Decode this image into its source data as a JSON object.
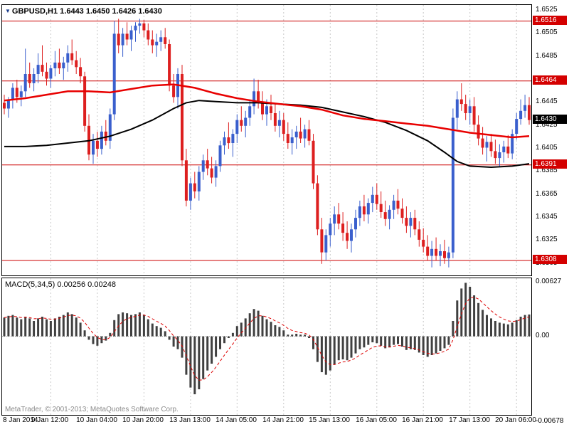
{
  "header": {
    "title_text": "GBPUSD,H1 1.6443 1.6450 1.6426 1.6430",
    "symbol": "GBPUSD",
    "timeframe": "H1",
    "marker_glyph": "▼"
  },
  "macd_panel": {
    "label_text": "MACD(5,34,5) 0.00256 0.00248"
  },
  "footer": {
    "copyright": "MetaTrader, © 2001-2013; MetaQuotes Software Corp."
  },
  "colors": {
    "bull": "#3a5fcd",
    "bear": "#dd1f1f",
    "level_line": "#cc0000",
    "badge_red": "#d40000",
    "badge_black": "#000000",
    "grid": "#c8c8c8",
    "histogram": "#404040",
    "signal": "#dd0000",
    "zero_line": "#999999",
    "background": "#ffffff",
    "border": "#000000"
  },
  "chart_data": [
    {
      "type": "candlestick",
      "title": "GBPUSD,H1",
      "open": 1.6443,
      "high": 1.645,
      "low": 1.6426,
      "close": 1.643,
      "ylim": [
        1.6295,
        1.653
      ],
      "grid": "vertical-dashed",
      "y_ticks": [
        "1.6525",
        "1.6505",
        "1.6485",
        "1.6445",
        "1.6425",
        "1.6405",
        "1.6385",
        "1.6365",
        "1.6345",
        "1.6325",
        "1.6305"
      ],
      "level_lines": [
        1.6516,
        1.6464,
        1.6391,
        1.6308
      ],
      "badges": [
        {
          "text": "1.6516",
          "value": 1.6516,
          "style": "red"
        },
        {
          "text": "1.6464",
          "value": 1.6464,
          "style": "red"
        },
        {
          "text": "1.6430",
          "value": 1.643,
          "style": "black"
        },
        {
          "text": "1.6391",
          "value": 1.6391,
          "style": "red"
        },
        {
          "text": "1.6308",
          "value": 1.6308,
          "style": "red"
        }
      ],
      "x_labels": [
        [
          "8 Jan 2014",
          0
        ],
        [
          "9 Jan 12:00",
          11
        ],
        [
          "10 Jan 04:00",
          22
        ],
        [
          "10 Jan 20:00",
          33
        ],
        [
          "13 Jan 13:00",
          44
        ],
        [
          "14 Jan 05:00",
          55
        ],
        [
          "14 Jan 21:00",
          66
        ],
        [
          "15 Jan 13:00",
          77
        ],
        [
          "16 Jan 05:00",
          88
        ],
        [
          "16 Jan 21:00",
          99
        ],
        [
          "17 Jan 13:00",
          110
        ],
        [
          "20 Jan 06:00",
          121
        ]
      ],
      "candles": [
        [
          1.6445,
          1.6452,
          1.6435,
          1.644
        ],
        [
          1.644,
          1.645,
          1.6432,
          1.6448
        ],
        [
          1.6448,
          1.6462,
          1.644,
          1.6458
        ],
        [
          1.6458,
          1.6465,
          1.6445,
          1.645
        ],
        [
          1.645,
          1.646,
          1.6442,
          1.6455
        ],
        [
          1.6455,
          1.6492,
          1.645,
          1.647
        ],
        [
          1.647,
          1.648,
          1.6458,
          1.6462
        ],
        [
          1.6462,
          1.6475,
          1.6455,
          1.647
        ],
        [
          1.647,
          1.6488,
          1.6462,
          1.6478
        ],
        [
          1.6478,
          1.6495,
          1.6468,
          1.6472
        ],
        [
          1.6472,
          1.648,
          1.646,
          1.6466
        ],
        [
          1.6466,
          1.6478,
          1.6458,
          1.6475
        ],
        [
          1.6475,
          1.649,
          1.6468,
          1.648
        ],
        [
          1.648,
          1.6492,
          1.647,
          1.6475
        ],
        [
          1.6475,
          1.6485,
          1.6465,
          1.648
        ],
        [
          1.648,
          1.6495,
          1.6472,
          1.6488
        ],
        [
          1.6488,
          1.65,
          1.6478,
          1.6482
        ],
        [
          1.6482,
          1.649,
          1.647,
          1.6476
        ],
        [
          1.6476,
          1.6484,
          1.6462,
          1.6468
        ],
        [
          1.6468,
          1.6472,
          1.642,
          1.6425
        ],
        [
          1.6425,
          1.6435,
          1.6395,
          1.64
        ],
        [
          1.64,
          1.6418,
          1.6392,
          1.6412
        ],
        [
          1.6412,
          1.642,
          1.6398,
          1.6405
        ],
        [
          1.6405,
          1.6425,
          1.64,
          1.642
        ],
        [
          1.642,
          1.643,
          1.6408,
          1.6412
        ],
        [
          1.6412,
          1.644,
          1.6405,
          1.6435
        ],
        [
          1.6435,
          1.6516,
          1.643,
          1.6505
        ],
        [
          1.6505,
          1.6518,
          1.6488,
          1.6495
        ],
        [
          1.6495,
          1.651,
          1.6485,
          1.6505
        ],
        [
          1.6505,
          1.6515,
          1.6495,
          1.65
        ],
        [
          1.65,
          1.6512,
          1.649,
          1.6508
        ],
        [
          1.6508,
          1.6515,
          1.6498,
          1.6512
        ],
        [
          1.6512,
          1.6518,
          1.6505,
          1.6514
        ],
        [
          1.6514,
          1.6517,
          1.6502,
          1.6508
        ],
        [
          1.6508,
          1.6514,
          1.6495,
          1.65
        ],
        [
          1.65,
          1.6508,
          1.6488,
          1.6495
        ],
        [
          1.6495,
          1.6505,
          1.6485,
          1.6498
        ],
        [
          1.6498,
          1.6508,
          1.649,
          1.6502
        ],
        [
          1.6502,
          1.651,
          1.6492,
          1.6496
        ],
        [
          1.6496,
          1.65,
          1.6455,
          1.646
        ],
        [
          1.646,
          1.647,
          1.6445,
          1.645
        ],
        [
          1.645,
          1.6475,
          1.644,
          1.647
        ],
        [
          1.647,
          1.6478,
          1.639,
          1.6395
        ],
        [
          1.6395,
          1.6405,
          1.6355,
          1.636
        ],
        [
          1.636,
          1.638,
          1.6352,
          1.6375
        ],
        [
          1.6375,
          1.6385,
          1.6362,
          1.6368
        ],
        [
          1.6368,
          1.639,
          1.636,
          1.6385
        ],
        [
          1.6385,
          1.64,
          1.6378,
          1.6395
        ],
        [
          1.6395,
          1.6405,
          1.6382,
          1.6388
        ],
        [
          1.6388,
          1.6398,
          1.6375,
          1.638
        ],
        [
          1.638,
          1.6395,
          1.6372,
          1.639
        ],
        [
          1.639,
          1.6412,
          1.6385,
          1.6408
        ],
        [
          1.6408,
          1.642,
          1.64,
          1.6415
        ],
        [
          1.6415,
          1.6428,
          1.6405,
          1.641
        ],
        [
          1.641,
          1.6422,
          1.6398,
          1.6418
        ],
        [
          1.6418,
          1.6435,
          1.641,
          1.643
        ],
        [
          1.643,
          1.6442,
          1.642,
          1.6425
        ],
        [
          1.6425,
          1.6438,
          1.6415,
          1.6432
        ],
        [
          1.6432,
          1.6448,
          1.6425,
          1.6442
        ],
        [
          1.6442,
          1.6466,
          1.6435,
          1.6455
        ],
        [
          1.6455,
          1.6465,
          1.644,
          1.6445
        ],
        [
          1.6445,
          1.6455,
          1.643,
          1.6435
        ],
        [
          1.6435,
          1.6448,
          1.6425,
          1.6442
        ],
        [
          1.6442,
          1.6452,
          1.643,
          1.6436
        ],
        [
          1.6436,
          1.6444,
          1.642,
          1.6425
        ],
        [
          1.6425,
          1.6438,
          1.6415,
          1.643
        ],
        [
          1.643,
          1.6436,
          1.6412,
          1.6418
        ],
        [
          1.6418,
          1.6428,
          1.6405,
          1.641
        ],
        [
          1.641,
          1.6422,
          1.64,
          1.6415
        ],
        [
          1.6415,
          1.6425,
          1.6405,
          1.642
        ],
        [
          1.642,
          1.6432,
          1.641,
          1.6414
        ],
        [
          1.6414,
          1.6426,
          1.6406,
          1.6422
        ],
        [
          1.6422,
          1.643,
          1.6408,
          1.6412
        ],
        [
          1.6412,
          1.6418,
          1.637,
          1.6375
        ],
        [
          1.6375,
          1.6382,
          1.633,
          1.6335
        ],
        [
          1.6335,
          1.6345,
          1.6305,
          1.6315
        ],
        [
          1.6315,
          1.6335,
          1.6308,
          1.633
        ],
        [
          1.633,
          1.6345,
          1.632,
          1.634
        ],
        [
          1.634,
          1.6355,
          1.633,
          1.6348
        ],
        [
          1.6348,
          1.6358,
          1.6335,
          1.634
        ],
        [
          1.634,
          1.635,
          1.6325,
          1.6332
        ],
        [
          1.6332,
          1.6342,
          1.6318,
          1.6325
        ],
        [
          1.6325,
          1.634,
          1.6315,
          1.6335
        ],
        [
          1.6335,
          1.6352,
          1.6328,
          1.6345
        ],
        [
          1.6345,
          1.636,
          1.6338,
          1.6355
        ],
        [
          1.6355,
          1.6365,
          1.6342,
          1.6348
        ],
        [
          1.6348,
          1.6362,
          1.634,
          1.6358
        ],
        [
          1.6358,
          1.6372,
          1.635,
          1.6365
        ],
        [
          1.6365,
          1.6375,
          1.6352,
          1.6357
        ],
        [
          1.6357,
          1.6368,
          1.6345,
          1.635
        ],
        [
          1.635,
          1.636,
          1.6338,
          1.6344
        ],
        [
          1.6344,
          1.6356,
          1.6335,
          1.6352
        ],
        [
          1.6352,
          1.6365,
          1.6344,
          1.636
        ],
        [
          1.636,
          1.637,
          1.6348,
          1.6353
        ],
        [
          1.6353,
          1.6362,
          1.634,
          1.6345
        ],
        [
          1.6345,
          1.6355,
          1.6332,
          1.6338
        ],
        [
          1.6338,
          1.635,
          1.6328,
          1.6345
        ],
        [
          1.6345,
          1.6352,
          1.633,
          1.6335
        ],
        [
          1.6335,
          1.6342,
          1.632,
          1.6326
        ],
        [
          1.6326,
          1.6336,
          1.6315,
          1.632
        ],
        [
          1.632,
          1.633,
          1.6308,
          1.6312
        ],
        [
          1.6312,
          1.6325,
          1.6302,
          1.6318
        ],
        [
          1.6318,
          1.6328,
          1.6308,
          1.6312
        ],
        [
          1.6312,
          1.6322,
          1.6303,
          1.6316
        ],
        [
          1.6316,
          1.6326,
          1.6305,
          1.631
        ],
        [
          1.631,
          1.632,
          1.6302,
          1.6315
        ],
        [
          1.6315,
          1.644,
          1.631,
          1.6432
        ],
        [
          1.6432,
          1.6455,
          1.6422,
          1.6448
        ],
        [
          1.6448,
          1.6462,
          1.6438,
          1.6444
        ],
        [
          1.6444,
          1.6452,
          1.643,
          1.6436
        ],
        [
          1.6436,
          1.6448,
          1.6426,
          1.6442
        ],
        [
          1.6442,
          1.645,
          1.642,
          1.6426
        ],
        [
          1.6426,
          1.6434,
          1.6408,
          1.6414
        ],
        [
          1.6414,
          1.6424,
          1.64,
          1.6406
        ],
        [
          1.6406,
          1.6416,
          1.6394,
          1.6411
        ],
        [
          1.6411,
          1.6418,
          1.6398,
          1.6403
        ],
        [
          1.6403,
          1.6413,
          1.6392,
          1.6397
        ],
        [
          1.6397,
          1.6409,
          1.639,
          1.6402
        ],
        [
          1.6402,
          1.6412,
          1.6393,
          1.6407
        ],
        [
          1.6407,
          1.6417,
          1.6397,
          1.6401
        ],
        [
          1.6401,
          1.6422,
          1.6396,
          1.6418
        ],
        [
          1.6418,
          1.6436,
          1.6413,
          1.6431
        ],
        [
          1.6431,
          1.6448,
          1.6426,
          1.6438
        ],
        [
          1.6438,
          1.6452,
          1.6432,
          1.6443
        ],
        [
          1.6443,
          1.645,
          1.6426,
          1.643
        ]
      ],
      "ma_red": {
        "label": "red moving average",
        "color": "#e80000",
        "points": [
          [
            0,
            1.6447
          ],
          [
            5,
            1.6449
          ],
          [
            10,
            1.6452
          ],
          [
            15,
            1.6455
          ],
          [
            20,
            1.6455
          ],
          [
            25,
            1.6454
          ],
          [
            30,
            1.6457
          ],
          [
            35,
            1.646
          ],
          [
            40,
            1.6461
          ],
          [
            45,
            1.6458
          ],
          [
            50,
            1.6453
          ],
          [
            55,
            1.6449
          ],
          [
            60,
            1.6446
          ],
          [
            65,
            1.6444
          ],
          [
            70,
            1.6442
          ],
          [
            75,
            1.6439
          ],
          [
            80,
            1.6434
          ],
          [
            85,
            1.6431
          ],
          [
            90,
            1.6429
          ],
          [
            95,
            1.6427
          ],
          [
            100,
            1.6425
          ],
          [
            105,
            1.6422
          ],
          [
            110,
            1.6419
          ],
          [
            115,
            1.6417
          ],
          [
            120,
            1.6415
          ],
          [
            124,
            1.6416
          ]
        ]
      },
      "ma_black": {
        "label": "black moving average",
        "color": "#000000",
        "points": [
          [
            0,
            1.6407
          ],
          [
            5,
            1.6407
          ],
          [
            10,
            1.6408
          ],
          [
            15,
            1.641
          ],
          [
            20,
            1.6412
          ],
          [
            25,
            1.6416
          ],
          [
            30,
            1.6422
          ],
          [
            35,
            1.643
          ],
          [
            40,
            1.644
          ],
          [
            43,
            1.6445
          ],
          [
            46,
            1.6447
          ],
          [
            50,
            1.6446
          ],
          [
            55,
            1.6445
          ],
          [
            60,
            1.6445
          ],
          [
            65,
            1.6444
          ],
          [
            70,
            1.6443
          ],
          [
            75,
            1.6441
          ],
          [
            80,
            1.6437
          ],
          [
            85,
            1.6433
          ],
          [
            90,
            1.6428
          ],
          [
            95,
            1.6421
          ],
          [
            100,
            1.6412
          ],
          [
            104,
            1.6402
          ],
          [
            107,
            1.6394
          ],
          [
            110,
            1.639
          ],
          [
            115,
            1.6389
          ],
          [
            120,
            1.639
          ],
          [
            124,
            1.6392
          ]
        ]
      }
    },
    {
      "type": "bar",
      "name": "MACD(5,34,5)",
      "macd_value": 0.00256,
      "signal_value": 0.00248,
      "signal_period": 5,
      "ylim": [
        -0.0092,
        0.0068
      ],
      "y_labels": [
        {
          "text": "0.00627",
          "value": 0.00627
        },
        {
          "text": "0.00",
          "value": 0
        },
        {
          "text": "-0.00678",
          "value": -0.00678,
          "pin": "bottom"
        }
      ],
      "values": [
        0.0022,
        0.0024,
        0.0025,
        0.0022,
        0.002,
        0.0023,
        0.0021,
        0.0018,
        0.0021,
        0.0023,
        0.002,
        0.0018,
        0.0021,
        0.0023,
        0.0025,
        0.0028,
        0.0026,
        0.0022,
        0.0016,
        0.0007,
        -0.0004,
        -0.0009,
        -0.0011,
        -0.0008,
        -0.0005,
        0.0004,
        0.0019,
        0.0026,
        0.0028,
        0.0027,
        0.0025,
        0.0026,
        0.0028,
        0.0025,
        0.002,
        0.0015,
        0.0012,
        0.001,
        0.0006,
        -0.0004,
        -0.0012,
        -0.0015,
        -0.0025,
        -0.0045,
        -0.006,
        -0.00678,
        -0.0062,
        -0.005,
        -0.004,
        -0.0032,
        -0.0024,
        -0.0015,
        -0.0008,
        -0.0002,
        0.0004,
        0.0012,
        0.0016,
        0.0021,
        0.0027,
        0.0032,
        0.003,
        0.0024,
        0.002,
        0.0017,
        0.0013,
        0.0011,
        0.0007,
        0.0002,
        0.0002,
        0.0003,
        0.0002,
        0.0002,
        -0.0002,
        -0.0015,
        -0.003,
        -0.0042,
        -0.0045,
        -0.004,
        -0.0033,
        -0.0028,
        -0.0027,
        -0.0028,
        -0.0025,
        -0.002,
        -0.0015,
        -0.0013,
        -0.001,
        -0.0007,
        -0.0008,
        -0.0011,
        -0.0014,
        -0.0013,
        -0.001,
        -0.0009,
        -0.0012,
        -0.0016,
        -0.0015,
        -0.0016,
        -0.0019,
        -0.0022,
        -0.0024,
        -0.0022,
        -0.002,
        -0.0017,
        -0.0014,
        -0.001,
        0.0018,
        0.0042,
        0.0056,
        0.00627,
        0.0058,
        0.0048,
        0.0039,
        0.0031,
        0.0025,
        0.0021,
        0.0018,
        0.0016,
        0.0015,
        0.0014,
        0.0016,
        0.0019,
        0.0023,
        0.0025,
        0.00256
      ]
    }
  ]
}
